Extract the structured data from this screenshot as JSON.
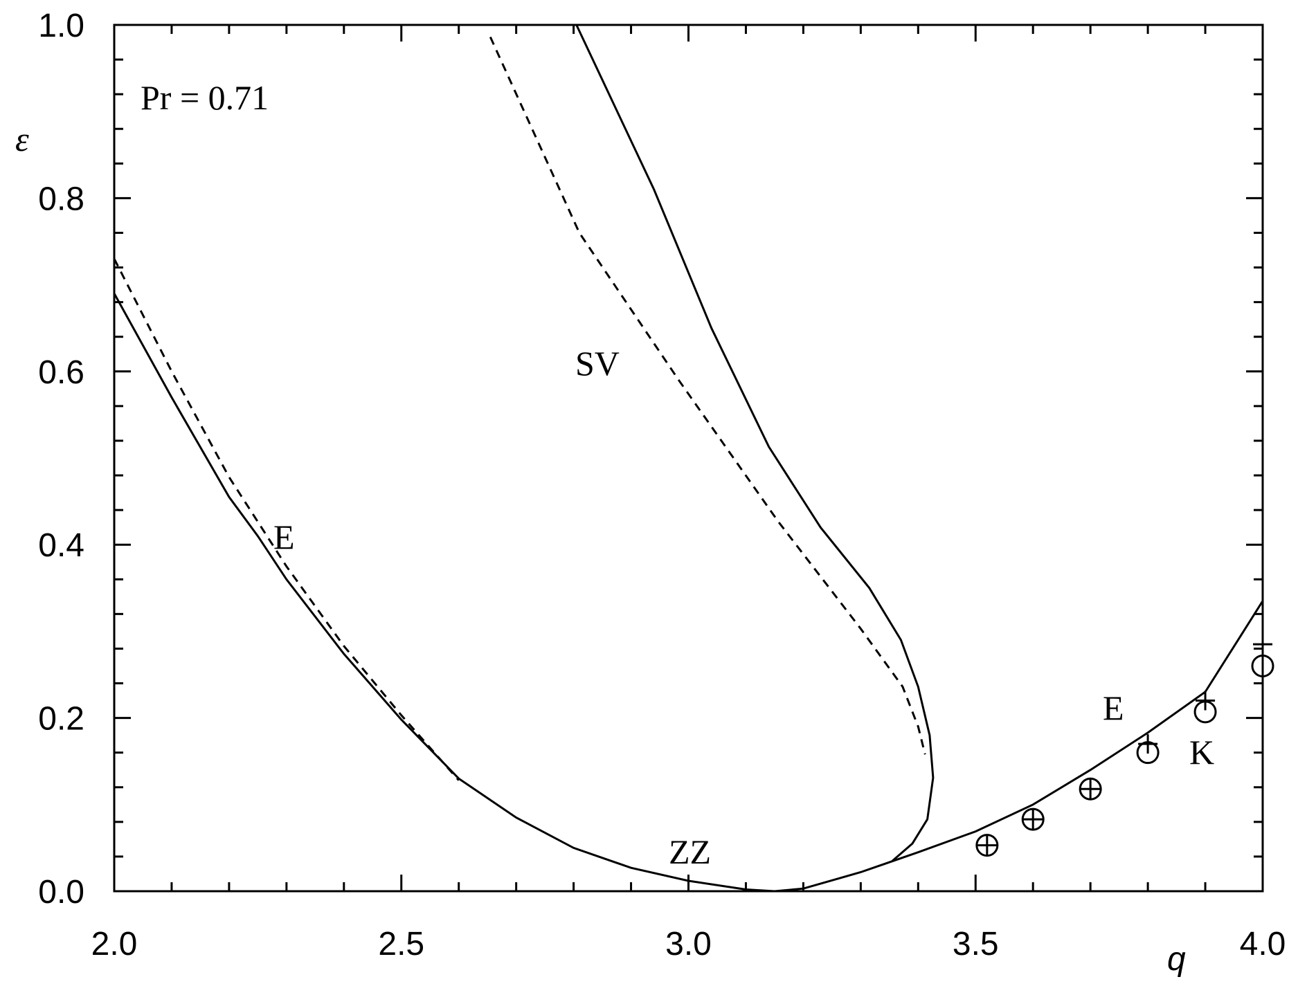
{
  "chart_data": {
    "type": "line",
    "xlabel": "q",
    "ylabel": "ε",
    "annotations": [
      "Pr = 0.71",
      "SV",
      "E",
      "ZZ",
      "E",
      "K"
    ],
    "xlim": [
      2.0,
      4.0
    ],
    "xticks": [
      {
        "value": 2,
        "label": "2.0"
      },
      2.5,
      {
        "value": 3,
        "label": "3.0"
      },
      3.5,
      {
        "value": 4,
        "label": "4.0"
      }
    ],
    "xminorticks": [
      2.1,
      2.2,
      2.3,
      2.4,
      2.6,
      2.7,
      2.8,
      2.9,
      3.1,
      3.2,
      3.3,
      3.4,
      3.6,
      3.7,
      3.8,
      3.9
    ],
    "ylim": [
      0.0,
      1.0
    ],
    "yticks": [
      {
        "value": 0,
        "label": "0.0"
      },
      0.2,
      0.4,
      0.6,
      0.8,
      {
        "value": 1,
        "label": "1.0"
      }
    ],
    "yminorticks": [
      0.04,
      0.08,
      0.12,
      0.16,
      0.24,
      0.28,
      0.32,
      0.36,
      0.44,
      0.48,
      0.52,
      0.56,
      0.64,
      0.68,
      0.72,
      0.76,
      0.84,
      0.88,
      0.92,
      0.96
    ],
    "series": [
      {
        "style": "solid",
        "color": "#000000",
        "x": [
          2.0,
          2.1,
          2.2,
          2.25,
          2.3,
          2.4,
          2.5,
          2.6,
          2.7,
          2.8,
          2.9,
          3.0,
          3.1,
          3.15,
          3.2,
          3.3,
          3.4,
          3.5,
          3.6,
          3.7,
          3.8,
          3.9,
          4.0
        ],
        "values": [
          0.69,
          0.57,
          0.455,
          0.41,
          0.36,
          0.274,
          0.198,
          0.13,
          0.085,
          0.05,
          0.027,
          0.012,
          0.002,
          0.0,
          0.003,
          0.022,
          0.045,
          0.069,
          0.1,
          0.14,
          0.183,
          0.23,
          0.335
        ]
      },
      {
        "style": "dashed",
        "color": "#000000",
        "x": [
          2.0,
          2.1,
          2.2,
          2.3,
          2.4,
          2.5,
          2.6
        ],
        "values": [
          0.73,
          0.6,
          0.478,
          0.375,
          0.283,
          0.203,
          0.128
        ]
      },
      {
        "style": "solid",
        "color": "#000000",
        "x": [
          2.805,
          2.94,
          3.04,
          3.14,
          3.23,
          3.315,
          3.37,
          3.4,
          3.42,
          3.426,
          3.416,
          3.39,
          3.355
        ],
        "values": [
          1.0,
          0.81,
          0.65,
          0.513,
          0.42,
          0.35,
          0.29,
          0.236,
          0.18,
          0.131,
          0.083,
          0.055,
          0.035
        ]
      },
      {
        "style": "dashed",
        "color": "#000000",
        "x": [
          2.655,
          2.81,
          2.983,
          3.156,
          3.3,
          3.373,
          3.4,
          3.412
        ],
        "values": [
          0.986,
          0.76,
          0.59,
          0.427,
          0.303,
          0.236,
          0.19,
          0.158
        ]
      },
      {
        "style": "circle",
        "color": "#000000",
        "x": [
          3.52,
          3.6,
          3.7,
          3.8,
          3.9,
          4.0
        ],
        "values": [
          0.053,
          0.083,
          0.118,
          0.16,
          0.207,
          0.26
        ]
      },
      {
        "style": "plus",
        "color": "#000000",
        "x": [
          3.52,
          3.6,
          3.7,
          3.8,
          3.9,
          4.0
        ],
        "values": [
          0.053,
          0.083,
          0.118,
          0.17,
          0.22,
          0.285
        ]
      }
    ]
  }
}
